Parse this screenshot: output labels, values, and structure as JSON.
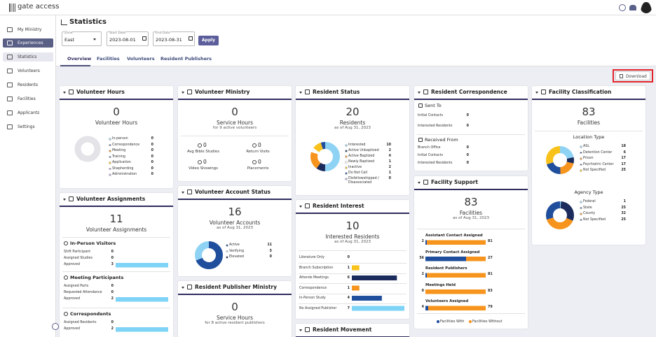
{
  "brand": "gate access",
  "sidebar": [
    "My Ministry",
    "Experiences",
    "Statistics",
    "Volunteers",
    "Residents",
    "Facilities",
    "Applicants",
    "Settings"
  ],
  "page_title": "Statistics",
  "filters": {
    "zone": {
      "label": "Zone",
      "value": "East"
    },
    "start": {
      "label": "Start Date",
      "value": "2023-08-01"
    },
    "end": {
      "label": "End Date",
      "value": "2023-08-31"
    },
    "apply": "Apply"
  },
  "tabs": [
    "Overview",
    "Facilities",
    "Volunteers",
    "Resident Publishers"
  ],
  "download": "Download",
  "volunteer_hours": {
    "title": "Volunteer Hours",
    "total": 0,
    "caption": "Volunteer Hours",
    "breakdown": [
      {
        "name": "In-person",
        "color": "#8fd3f4",
        "value": 0
      },
      {
        "name": "Correspondence",
        "color": "#1b2b5b",
        "value": 0
      },
      {
        "name": "Meeting",
        "color": "#f7941d",
        "value": 0
      },
      {
        "name": "Training",
        "color": "#1f4e9c",
        "value": 0
      },
      {
        "name": "Application",
        "color": "#f9c21b",
        "value": 0
      },
      {
        "name": "Shepherding",
        "color": "#7b5ea7",
        "value": 0
      },
      {
        "name": "Administration",
        "color": "#b8a4e0",
        "value": 0
      }
    ]
  },
  "volunteer_assignments": {
    "title": "Volunteer Assignments",
    "total": 11,
    "caption": "Volunteer Assignments",
    "bar_color": "#7fd3f7",
    "sections": [
      {
        "title": "In-Person Visitors",
        "rows": [
          {
            "name": "Shift Participant",
            "value": 0
          },
          {
            "name": "Assigned Studies",
            "value": 0
          },
          {
            "name": "Approved",
            "value": 3
          }
        ]
      },
      {
        "title": "Meeting Participants",
        "rows": [
          {
            "name": "Assigned Parts",
            "value": 0
          },
          {
            "name": "Requested Attendance",
            "value": 0
          },
          {
            "name": "Approved",
            "value": 2
          }
        ]
      },
      {
        "title": "Correspondents",
        "rows": [
          {
            "name": "Assigned Residents",
            "value": 0
          },
          {
            "name": "Approved",
            "value": 2
          }
        ]
      }
    ]
  },
  "volunteer_ministry": {
    "title": "Volunteer Ministry",
    "total": 0,
    "caption": "Service Hours",
    "subtitle": "for 9 active volunteers",
    "stats": [
      {
        "name": "Avg Bible Studies",
        "value": 0
      },
      {
        "name": "Return Visits",
        "value": 0
      },
      {
        "name": "Video Showings",
        "value": 0
      },
      {
        "name": "Placements",
        "value": 0
      }
    ]
  },
  "volunteer_account_status": {
    "title": "Volunteer Account Status",
    "total": 16,
    "caption": "Volunteer Accounts",
    "subtitle": "as of Aug 31, 2023",
    "breakdown": [
      {
        "name": "Active",
        "color": "#1f4e9c",
        "value": 11
      },
      {
        "name": "Verifying",
        "color": "#8fd3f4",
        "value": 5
      },
      {
        "name": "Elevated",
        "color": "#1b2b5b",
        "value": 0
      }
    ]
  },
  "resident_publisher_ministry": {
    "title": "Resident Publisher Ministry",
    "total": 0,
    "caption": "Service Hours",
    "subtitle": "for 8 active resident publishers"
  },
  "resident_status": {
    "title": "Resident Status",
    "total": 20,
    "caption": "Residents",
    "subtitle": "as of Aug 31, 2023",
    "breakdown": [
      {
        "name": "Interested",
        "color": "#8fd3f4",
        "value": 10
      },
      {
        "name": "Active Unbaptized",
        "color": "#1b2b5b",
        "value": 2
      },
      {
        "name": "Active Baptized",
        "color": "#f7941d",
        "value": 4
      },
      {
        "name": "Newly Baptized",
        "color": "#ffffff",
        "value": 1
      },
      {
        "name": "Inactive",
        "color": "#f9c21b",
        "value": 2
      },
      {
        "name": "Do Not Call",
        "color": "#1f4e9c",
        "value": 1
      },
      {
        "name": "Disfellowshipped / Disassociated",
        "color": "#b8a4e0",
        "value": 0
      }
    ]
  },
  "resident_interest": {
    "title": "Resident Interest",
    "total": 10,
    "caption": "Interested Residents",
    "subtitle": "as of Aug 31, 2023",
    "rows": [
      {
        "name": "Literature Only",
        "value": 0,
        "color": "#f9c21b"
      },
      {
        "name": "Branch Subscription",
        "value": 1,
        "color": "#f9c21b"
      },
      {
        "name": "Attends Meetings",
        "value": 6,
        "color": "#1b2b5b"
      },
      {
        "name": "Correspondence",
        "value": 1,
        "color": "#f7941d"
      },
      {
        "name": "In-Person Study",
        "value": 4,
        "color": "#1f4e9c"
      },
      {
        "name": "No Assigned Publisher",
        "value": 7,
        "color": "#7fd3f7"
      }
    ]
  },
  "resident_movement": {
    "title": "Resident Movement"
  },
  "resident_correspondence": {
    "title": "Resident Correspondence",
    "sections": [
      {
        "title": "Sent To",
        "rows": [
          {
            "name": "Initial Contacts",
            "value": 0
          },
          {
            "name": "Interested Residents",
            "value": 0
          }
        ]
      },
      {
        "title": "Received From",
        "rows": [
          {
            "name": "Branch Office",
            "value": 0
          },
          {
            "name": "Initial Contacts",
            "value": 0
          },
          {
            "name": "Interested Residents",
            "value": 0
          }
        ]
      }
    ]
  },
  "facility_support": {
    "title": "Facility Support",
    "total": 83,
    "caption": "Facilities",
    "subtitle": "as of Aug 31, 2023",
    "series": [
      {
        "name": "Facilities With",
        "color": "#1f4e9c"
      },
      {
        "name": "Facilities Without",
        "color": "#f7941d"
      }
    ],
    "rows": [
      {
        "name": "Assistant Contact Assigned",
        "values": [
          2,
          81
        ]
      },
      {
        "name": "Primary Contact Assigned",
        "values": [
          56,
          27
        ]
      },
      {
        "name": "Resident Publishers",
        "values": [
          2,
          81
        ]
      },
      {
        "name": "Meetings Held",
        "values": [
          0,
          83
        ]
      },
      {
        "name": "Volunteers Assigned",
        "values": [
          4,
          79
        ]
      }
    ]
  },
  "facility_classification": {
    "title": "Facility Classification",
    "total": 83,
    "caption": "Facilities",
    "groups": [
      {
        "title": "Location Type",
        "breakdown": [
          {
            "name": "ASL",
            "color": "#8fd3f4",
            "value": 18
          },
          {
            "name": "Detention Center",
            "color": "#1b2b5b",
            "value": 6
          },
          {
            "name": "Prison",
            "color": "#f7941d",
            "value": 17
          },
          {
            "name": "Psychiatric Center",
            "color": "#1f4e9c",
            "value": 17
          },
          {
            "name": "Not Specified",
            "color": "#f9c21b",
            "value": 25
          }
        ]
      },
      {
        "title": "Agency Type",
        "breakdown": [
          {
            "name": "Federal",
            "color": "#8fd3f4",
            "value": 1
          },
          {
            "name": "State",
            "color": "#1b2b5b",
            "value": 25
          },
          {
            "name": "County",
            "color": "#f7941d",
            "value": 32
          },
          {
            "name": "Not Specified",
            "color": "#1f4e9c",
            "value": 25
          }
        ]
      }
    ]
  }
}
